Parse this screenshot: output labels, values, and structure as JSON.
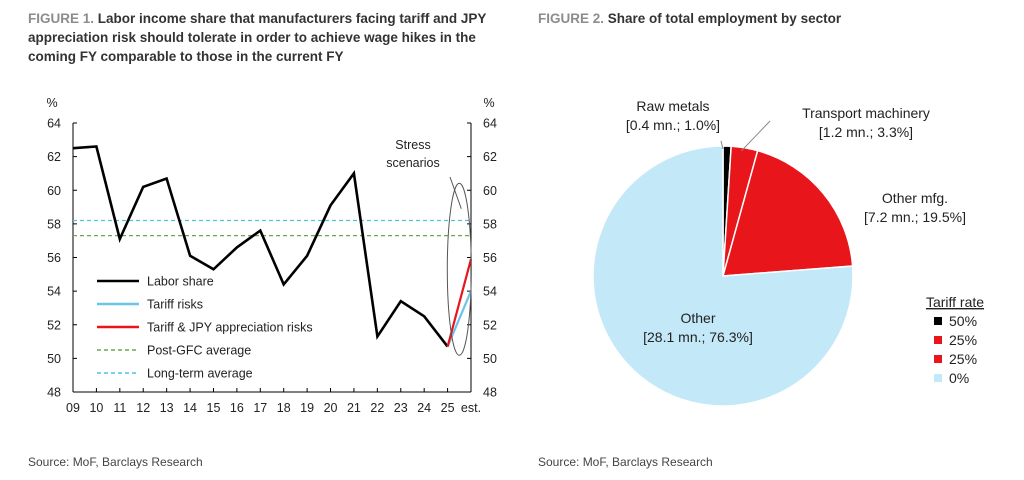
{
  "figure1": {
    "number_label": "FIGURE 1.",
    "title": "Labor income share that manufacturers facing tariff and JPY appreciation risk should tolerate in order to achieve wage hikes in the coming FY comparable to those in the current FY",
    "source": "Source: MoF, Barclays Research"
  },
  "figure2": {
    "number_label": "FIGURE 2.",
    "title": "Share of total employment by sector",
    "source": "Source: MoF, Barclays Research"
  },
  "chart_data": [
    {
      "type": "line",
      "y_unit_label": "%",
      "ylim": [
        48,
        64
      ],
      "yticks": [
        48,
        50,
        52,
        54,
        56,
        58,
        60,
        62,
        64
      ],
      "categories": [
        "09",
        "10",
        "11",
        "12",
        "13",
        "14",
        "15",
        "16",
        "17",
        "18",
        "19",
        "20",
        "21",
        "22",
        "23",
        "24",
        "25",
        "est."
      ],
      "series": [
        {
          "name": "Labor share",
          "color": "#000000",
          "style": "solid",
          "values": [
            62.5,
            62.6,
            57.1,
            60.2,
            60.7,
            56.1,
            55.3,
            56.6,
            57.6,
            54.4,
            56.1,
            59.1,
            61.0,
            51.3,
            53.4,
            52.5,
            50.7,
            null
          ]
        },
        {
          "name": "Tariff risks",
          "color": "#6ec3e8",
          "style": "solid",
          "values": [
            null,
            null,
            null,
            null,
            null,
            null,
            null,
            null,
            null,
            null,
            null,
            null,
            null,
            null,
            null,
            null,
            50.7,
            54.0
          ]
        },
        {
          "name": "Tariff & JPY appreciation risks",
          "color": "#e8151b",
          "style": "solid",
          "values": [
            null,
            null,
            null,
            null,
            null,
            null,
            null,
            null,
            null,
            null,
            null,
            null,
            null,
            null,
            null,
            null,
            50.7,
            55.9
          ]
        },
        {
          "name": "Post-GFC average",
          "color": "#6aa84f",
          "style": "dashed",
          "constant": 57.3
        },
        {
          "name": "Long-term average",
          "color": "#4fc3dd",
          "style": "dashed",
          "constant": 58.2
        }
      ],
      "annotation": {
        "text_lines": [
          "Stress",
          "scenarios"
        ]
      },
      "legend_position": "bottom-left"
    },
    {
      "type": "pie",
      "slices": [
        {
          "label": "Raw metals",
          "detail": "[0.4 mn.; 1.0%]",
          "value": 1.0,
          "employment_mn": 0.4,
          "color": "#000000"
        },
        {
          "label": "Transport machinery",
          "detail": "[1.2 mn.; 3.3%]",
          "value": 3.3,
          "employment_mn": 1.2,
          "color": "#e8151b"
        },
        {
          "label": "Other mfg.",
          "detail": "[7.2 mn.; 19.5%]",
          "value": 19.5,
          "employment_mn": 7.2,
          "color": "#e8151b"
        },
        {
          "label": "Other",
          "detail": "[28.1 mn.; 76.3%]",
          "value": 76.3,
          "employment_mn": 28.1,
          "color": "#c3e8f8"
        }
      ],
      "legend": {
        "title": "Tariff rate",
        "items": [
          {
            "label": "50%",
            "color": "#000000"
          },
          {
            "label": "25%",
            "color": "#e8151b"
          },
          {
            "label": "25%",
            "color": "#e8151b"
          },
          {
            "label": "0%",
            "color": "#c3e8f8"
          }
        ]
      }
    }
  ]
}
